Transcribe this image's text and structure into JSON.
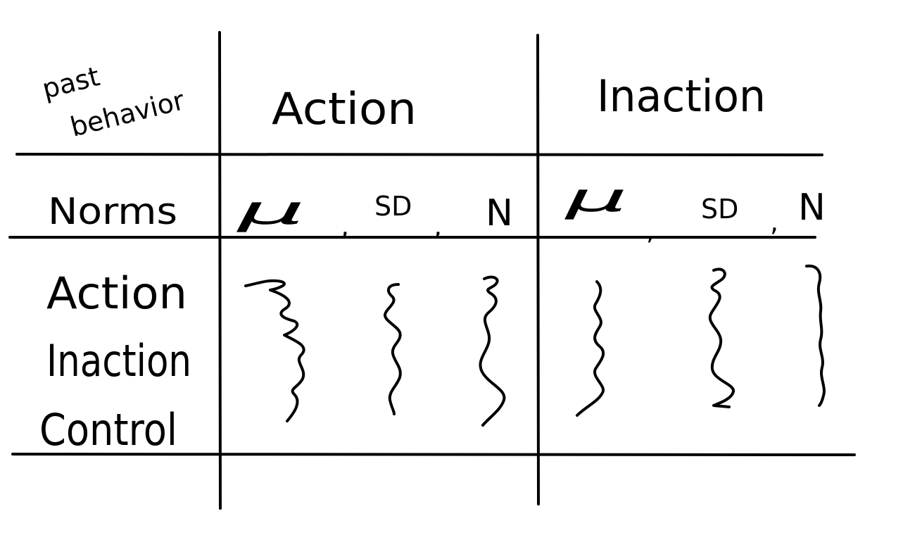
{
  "table": {
    "corner_label_line1": "past",
    "corner_label_line2": "behavior",
    "column_headers": [
      "Action",
      "Inaction"
    ],
    "norms_label": "Norms",
    "stat_labels": {
      "mean": "μ",
      "sd": "SD",
      "n": "N"
    },
    "separator": ",",
    "row_labels": [
      "Action",
      "Inaction",
      "Control"
    ]
  },
  "colors": {
    "ink": "#000000",
    "paper": "#ffffff"
  }
}
